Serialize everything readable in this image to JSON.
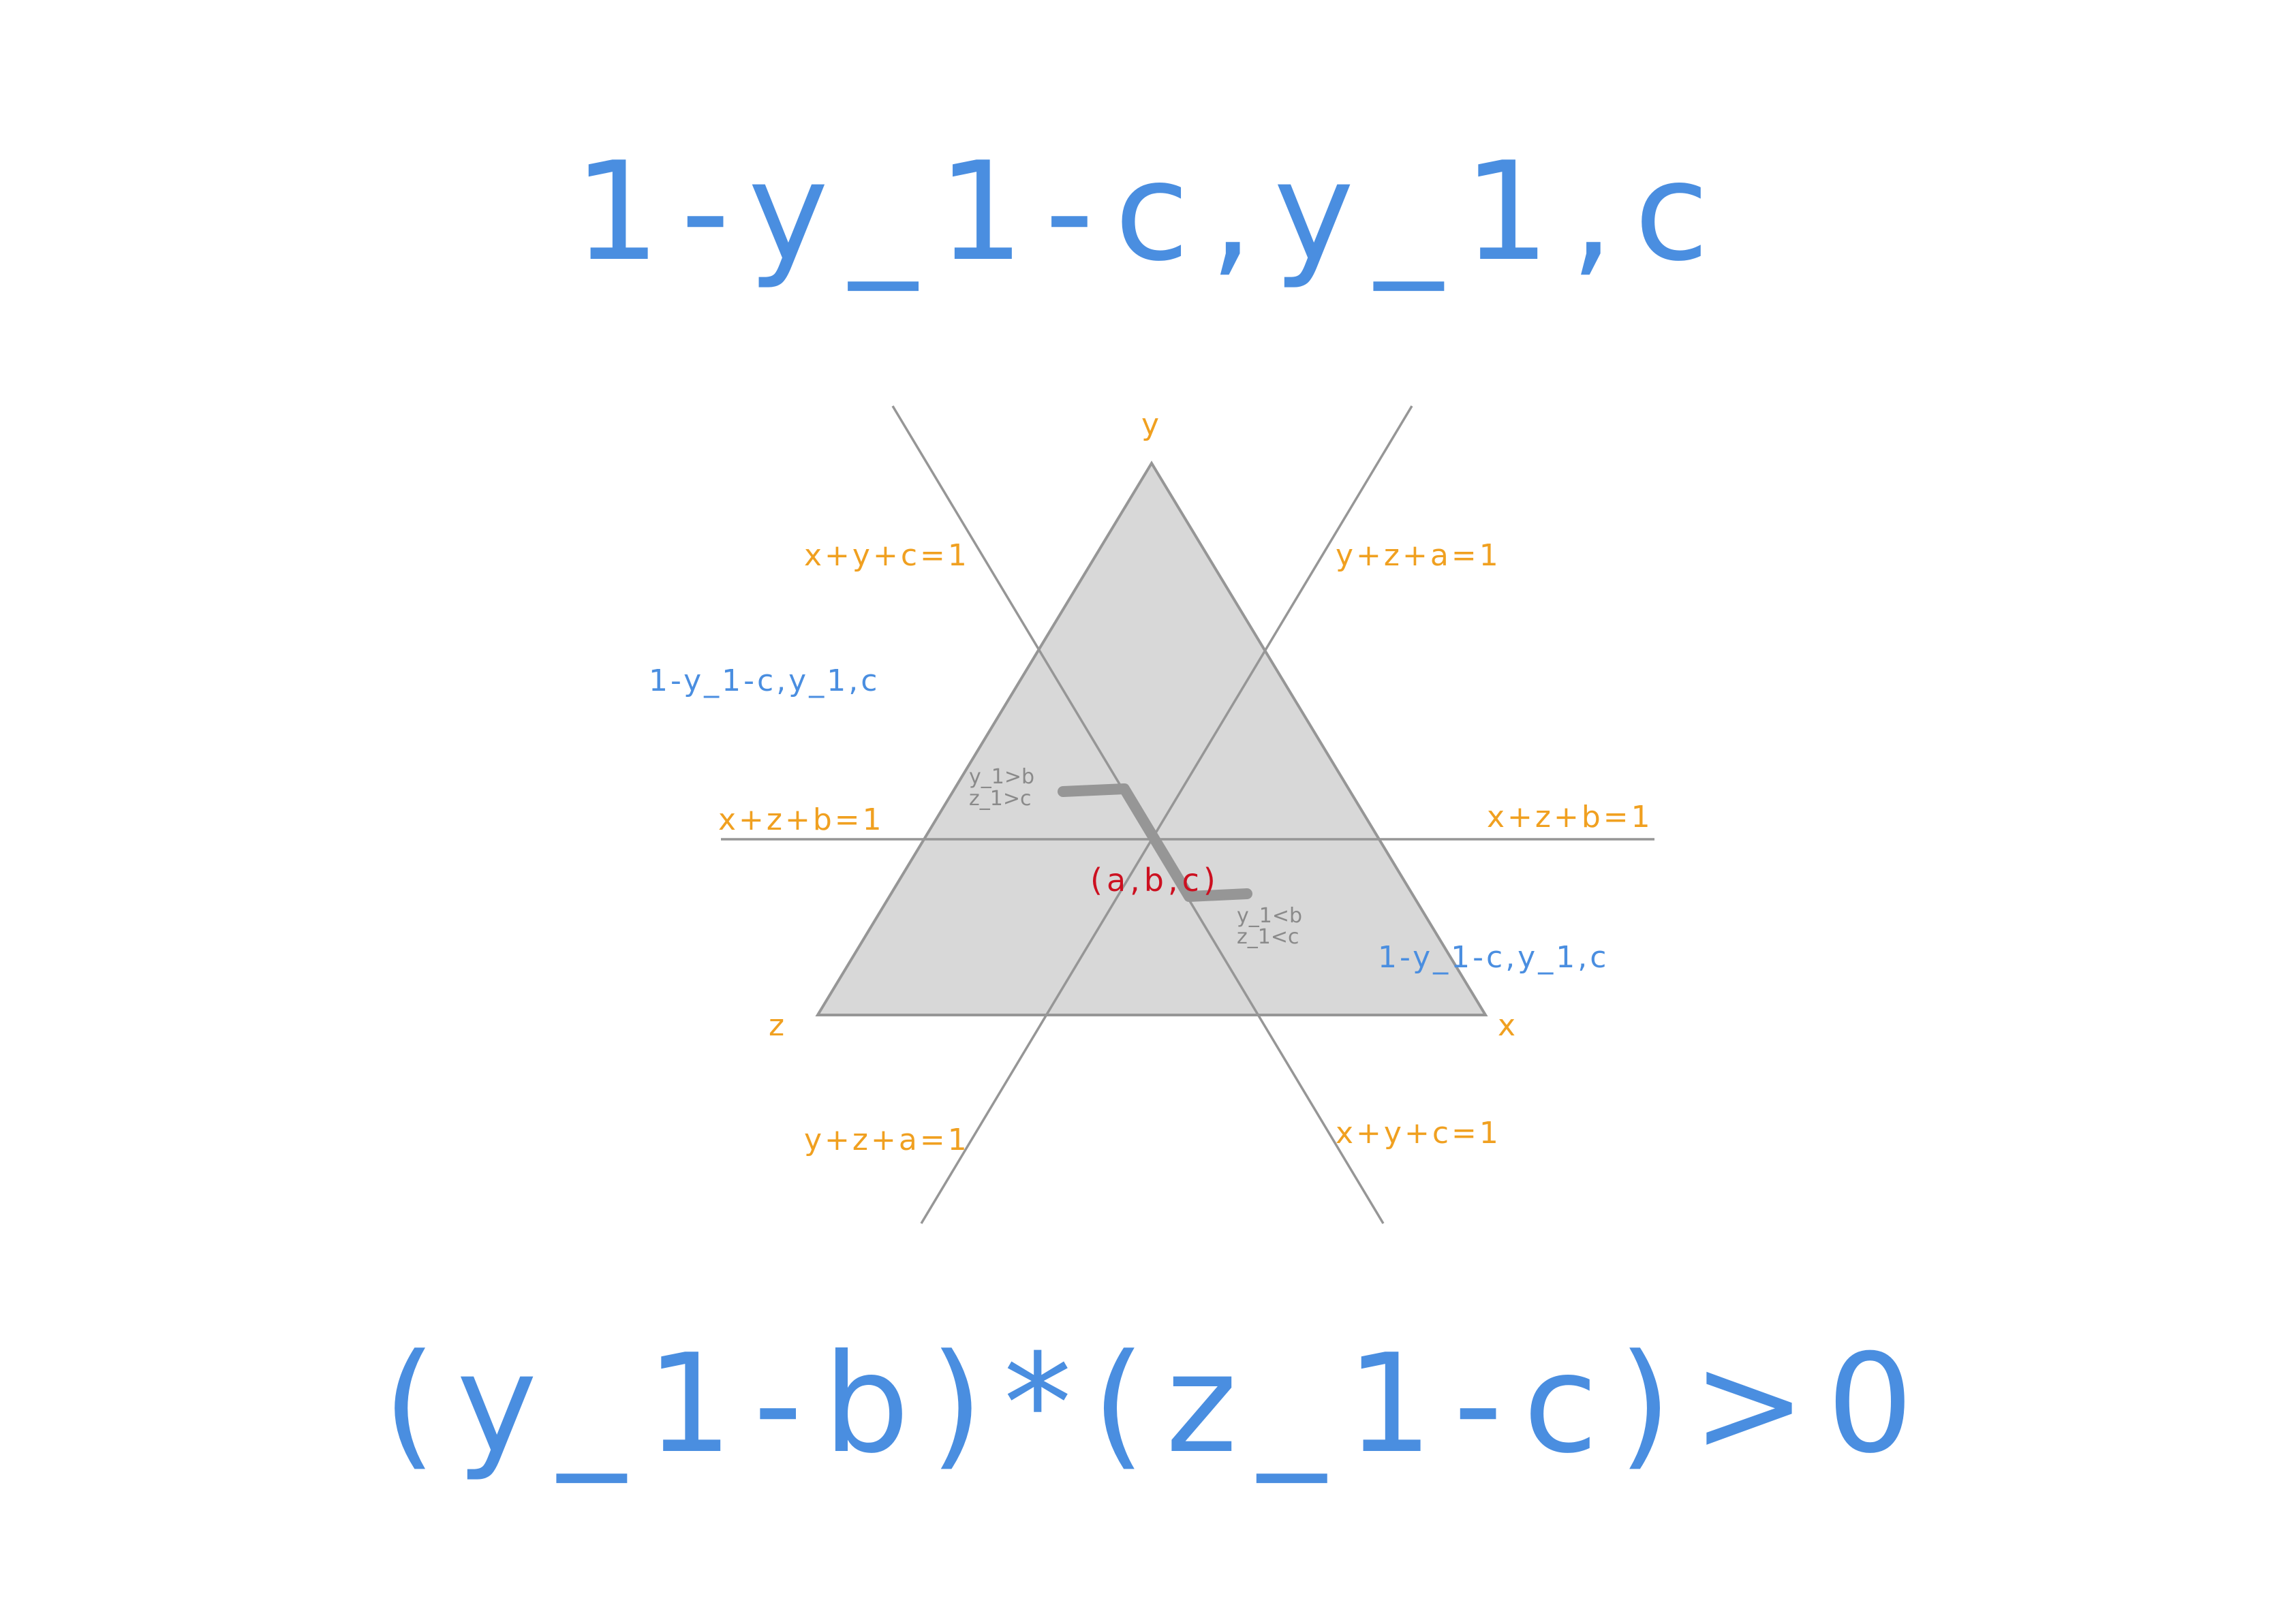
{
  "colors": {
    "blue": "#4a8ee0",
    "orange": "#f0a020",
    "gray_text": "#8a8a8a",
    "red": "#cc1020",
    "triangle_fill": "#d8d8d8",
    "line": "#969696",
    "path": "#969696"
  },
  "title": "1-y_1-c,y_1,c",
  "formula": "(y_1-b)*(z_1-c)>0",
  "vertices": {
    "y": "y",
    "x": "x",
    "z": "z"
  },
  "lines": {
    "xyc_top": "x+y+c=1",
    "yza_top": "y+z+a=1",
    "xzb_left": "x+z+b=1",
    "xzb_right": "x+z+b=1",
    "yza_bottom": "y+z+a=1",
    "xyc_bottom": "x+y+c=1"
  },
  "blue_labels": {
    "upper_left": "1-y_1-c,y_1,c",
    "lower_right": "1-y_1-c,y_1,c"
  },
  "point": "(a,b,c)",
  "conditions": {
    "upper": [
      "y_1>b",
      "z_1>c"
    ],
    "lower": [
      "y_1<b",
      "z_1<c"
    ]
  }
}
